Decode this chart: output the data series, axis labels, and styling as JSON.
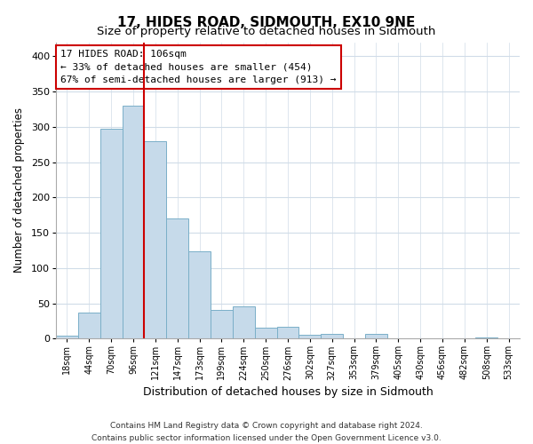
{
  "title": "17, HIDES ROAD, SIDMOUTH, EX10 9NE",
  "subtitle": "Size of property relative to detached houses in Sidmouth",
  "xlabel": "Distribution of detached houses by size in Sidmouth",
  "ylabel": "Number of detached properties",
  "bar_labels": [
    "18sqm",
    "44sqm",
    "70sqm",
    "96sqm",
    "121sqm",
    "147sqm",
    "173sqm",
    "199sqm",
    "224sqm",
    "250sqm",
    "276sqm",
    "302sqm",
    "327sqm",
    "353sqm",
    "379sqm",
    "405sqm",
    "430sqm",
    "456sqm",
    "482sqm",
    "508sqm",
    "533sqm"
  ],
  "bar_values": [
    4,
    37,
    297,
    330,
    280,
    170,
    123,
    41,
    46,
    16,
    17,
    5,
    6,
    0,
    7,
    0,
    0,
    0,
    0,
    2,
    0
  ],
  "bar_color": "#c6daea",
  "bar_edge_color": "#7aafc8",
  "vline_x": 3.5,
  "vline_color": "#cc0000",
  "ylim": [
    0,
    420
  ],
  "yticks": [
    0,
    50,
    100,
    150,
    200,
    250,
    300,
    350,
    400
  ],
  "annotation_title": "17 HIDES ROAD: 106sqm",
  "annotation_line1": "← 33% of detached houses are smaller (454)",
  "annotation_line2": "67% of semi-detached houses are larger (913) →",
  "footer_line1": "Contains HM Land Registry data © Crown copyright and database right 2024.",
  "footer_line2": "Contains public sector information licensed under the Open Government Licence v3.0.",
  "background_color": "#ffffff",
  "plot_bg_color": "#ffffff",
  "grid_color": "#d0dce8"
}
